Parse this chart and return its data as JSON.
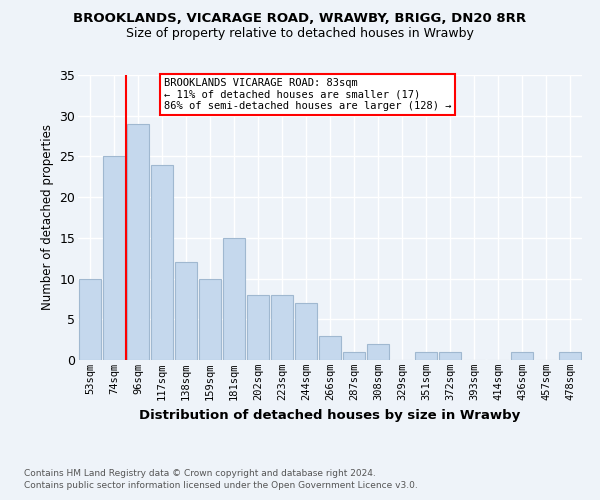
{
  "title1": "BROOKLANDS, VICARAGE ROAD, WRAWBY, BRIGG, DN20 8RR",
  "title2": "Size of property relative to detached houses in Wrawby",
  "xlabel": "Distribution of detached houses by size in Wrawby",
  "ylabel": "Number of detached properties",
  "categories": [
    "53sqm",
    "74sqm",
    "96sqm",
    "117sqm",
    "138sqm",
    "159sqm",
    "181sqm",
    "202sqm",
    "223sqm",
    "244sqm",
    "266sqm",
    "287sqm",
    "308sqm",
    "329sqm",
    "351sqm",
    "372sqm",
    "393sqm",
    "414sqm",
    "436sqm",
    "457sqm",
    "478sqm"
  ],
  "values": [
    10,
    25,
    29,
    24,
    12,
    10,
    15,
    8,
    8,
    7,
    3,
    1,
    2,
    0,
    1,
    1,
    0,
    0,
    1,
    0,
    1
  ],
  "bar_color": "#c5d8ed",
  "bar_edge_color": "#a0b8d0",
  "ylim": [
    0,
    35
  ],
  "yticks": [
    0,
    5,
    10,
    15,
    20,
    25,
    30,
    35
  ],
  "property_line_x": 1.5,
  "annotation_line1": "BROOKLANDS VICARAGE ROAD: 83sqm",
  "annotation_line2": "← 11% of detached houses are smaller (17)",
  "annotation_line3": "86% of semi-detached houses are larger (128) →",
  "footnote1": "Contains HM Land Registry data © Crown copyright and database right 2024.",
  "footnote2": "Contains public sector information licensed under the Open Government Licence v3.0.",
  "bg_color": "#eef3f9",
  "plot_bg_color": "#eef3f9",
  "grid_color": "#ffffff"
}
